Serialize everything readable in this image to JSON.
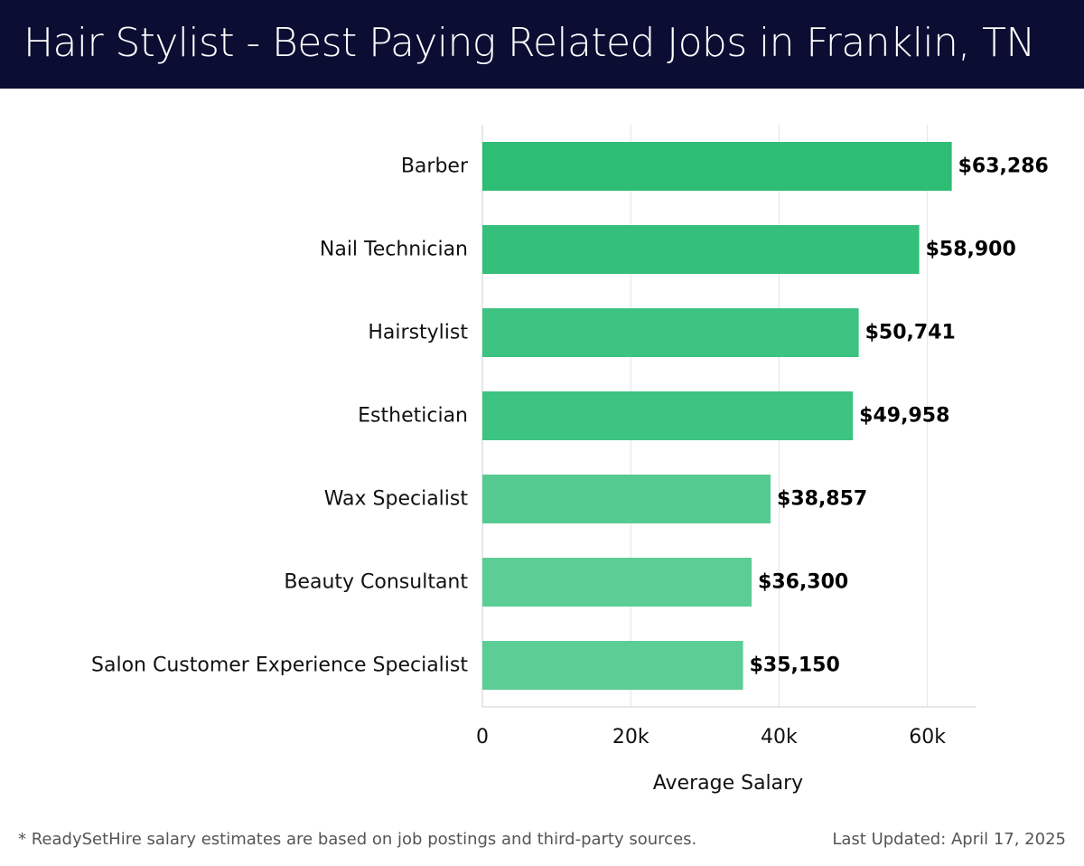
{
  "header": {
    "title": "Hair Stylist - Best Paying Related Jobs in Franklin, TN"
  },
  "footer": {
    "note": "* ReadySetHire salary estimates are based on job postings and third-party sources.",
    "updated": "Last Updated: April 17, 2025"
  },
  "colors": {
    "header_bg": "#0b0d33",
    "bar_colors": [
      "#2ebd74",
      "#34c07a",
      "#3dc382",
      "#3dc382",
      "#55ca91",
      "#5ccd95",
      "#5ccd95"
    ]
  },
  "chart_data": {
    "type": "bar",
    "orientation": "horizontal",
    "categories": [
      "Barber",
      "Nail Technician",
      "Hairstylist",
      "Esthetician",
      "Wax Specialist",
      "Beauty Consultant",
      "Salon Customer Experience Specialist"
    ],
    "values": [
      63286,
      58900,
      50741,
      49958,
      38857,
      36300,
      35150
    ],
    "value_labels": [
      "$63,286",
      "$58,900",
      "$50,741",
      "$49,958",
      "$38,857",
      "$36,300",
      "$35,150"
    ],
    "xlabel": "Average Salary",
    "ylabel": "",
    "xlim": [
      0,
      66500
    ],
    "xticks": [
      0,
      20000,
      40000,
      60000
    ],
    "xtick_labels": [
      "0",
      "20k",
      "40k",
      "60k"
    ],
    "grid": true
  }
}
